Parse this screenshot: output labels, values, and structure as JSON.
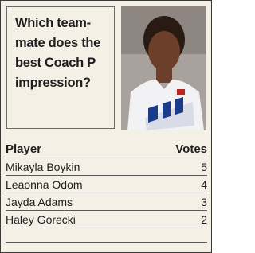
{
  "header": {
    "question_lines": [
      "Which team-",
      "mate does the",
      "best Coach P",
      "impression?"
    ]
  },
  "table": {
    "columns": [
      "Player",
      "Votes"
    ],
    "rows": [
      [
        "Mikayla Boykin",
        "5"
      ],
      [
        "Leaonna Odom",
        "4"
      ],
      [
        "Jayda Adams",
        "3"
      ],
      [
        "Haley Gorecki",
        "2"
      ]
    ]
  }
}
